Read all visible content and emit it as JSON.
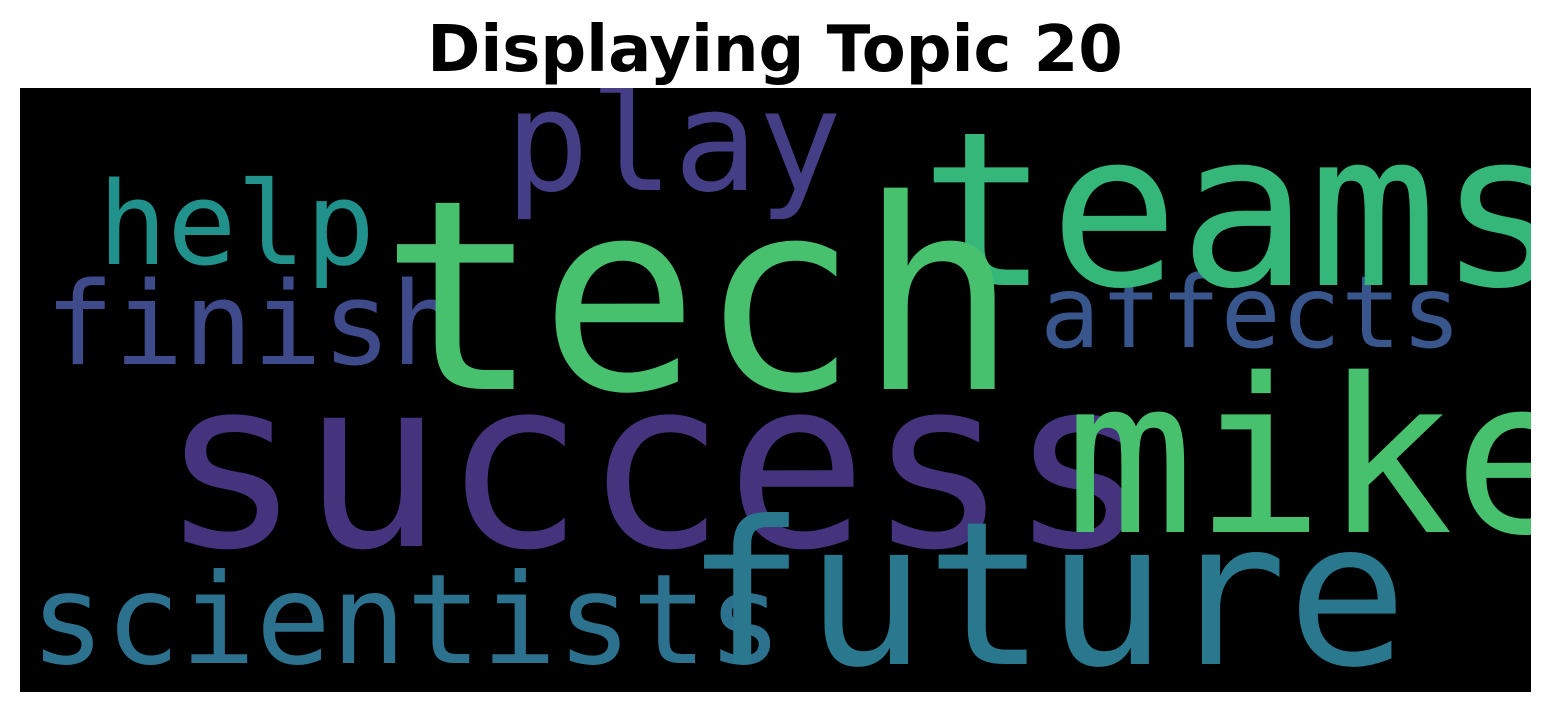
{
  "title": "Displaying Topic 20",
  "words": {
    "tech": {
      "text": "tech",
      "color": "#48c16e"
    },
    "teams": {
      "text": "teams",
      "color": "#35b779"
    },
    "success": {
      "text": "success",
      "color": "#46337e"
    },
    "mike": {
      "text": "mike",
      "color": "#48c16e"
    },
    "future": {
      "text": "future",
      "color": "#2a788e"
    },
    "play": {
      "text": "play",
      "color": "#433e85"
    },
    "help": {
      "text": "help",
      "color": "#21918c"
    },
    "finish": {
      "text": "finish",
      "color": "#3e4a89"
    },
    "affects": {
      "text": "affects",
      "color": "#39568c"
    },
    "scientists": {
      "text": "scientists",
      "color": "#2c728e"
    }
  }
}
